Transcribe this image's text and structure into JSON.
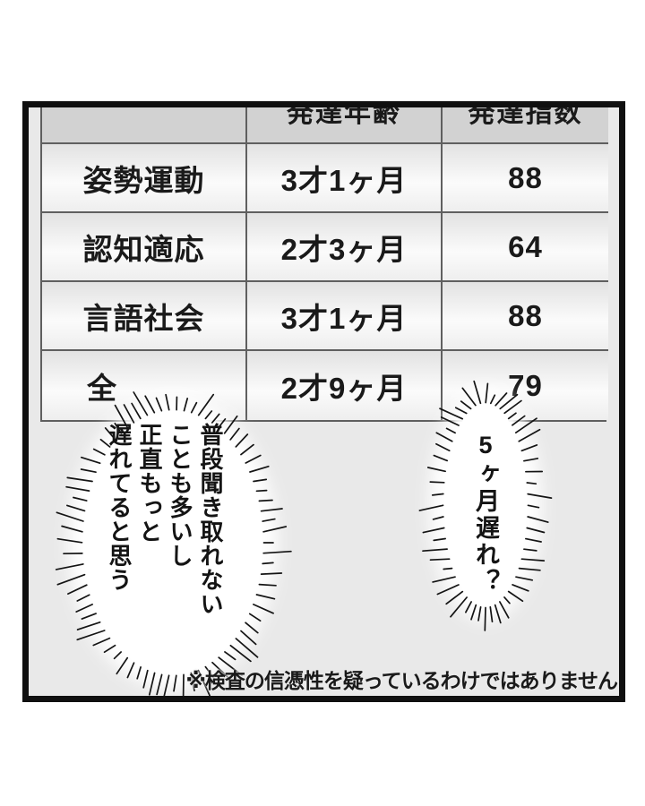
{
  "panel": {
    "background": "#e9e9e9",
    "border_color": "#101010"
  },
  "table": {
    "header_bg": "#d2d2d2",
    "columns": [
      "",
      "発達年齢",
      "発達指数"
    ],
    "rows": [
      {
        "label": "姿勢運動",
        "age": "3才1ヶ月",
        "index": "88"
      },
      {
        "label": "認知適応",
        "age": "2才3ヶ月",
        "index": "64"
      },
      {
        "label": "言語社会",
        "age": "3才1ヶ月",
        "index": "88"
      },
      {
        "label": "全",
        "age": "2才9ヶ月",
        "index": "79"
      }
    ]
  },
  "bubbles": {
    "left": {
      "text": "普段聞き取れない\nことも多いし\n正直もっと\n遅れてると思う"
    },
    "right": {
      "text": "5ヶ月遅れ？"
    }
  },
  "caption": "※検査の信憑性を疑っているわけではありません",
  "chart_data": {
    "type": "table",
    "columns": [
      "",
      "発達年齢",
      "発達指数"
    ],
    "rows": [
      [
        "姿勢運動",
        "3才1ヶ月",
        "88"
      ],
      [
        "認知適応",
        "2才3ヶ月",
        "64"
      ],
      [
        "言語社会",
        "3才1ヶ月",
        "88"
      ],
      [
        "全",
        "2才9ヶ月",
        "79"
      ]
    ]
  }
}
